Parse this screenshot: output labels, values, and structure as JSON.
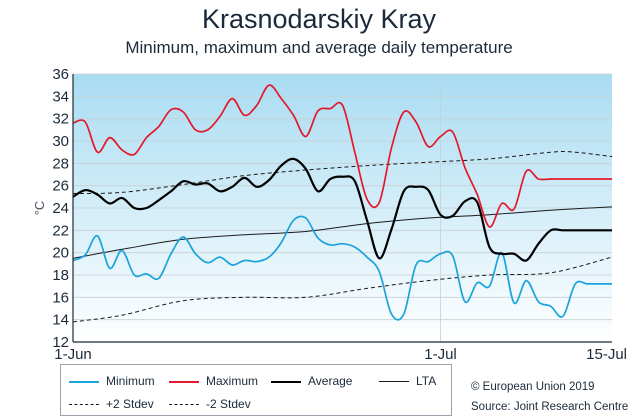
{
  "chart_data": {
    "type": "line",
    "title": "Krasnodarskiy Kray",
    "subtitle": "Minimum, maximum and average daily temperature",
    "xlabel": "",
    "ylabel": "°C",
    "ylim": [
      12,
      36
    ],
    "yticks": [
      12,
      14,
      16,
      18,
      20,
      22,
      24,
      26,
      28,
      30,
      32,
      34,
      36
    ],
    "xlim": [
      1,
      45
    ],
    "xticks": [
      {
        "day": 1,
        "label": "1-Jun"
      },
      {
        "day": 31,
        "label": "1-Jul"
      },
      {
        "day": 45,
        "label": "15-Jul"
      }
    ],
    "series": [
      {
        "name": "Minimum",
        "color": "#1aa3dc",
        "dash": "none",
        "x": [
          1,
          2,
          3,
          4,
          5,
          6,
          7,
          8,
          9,
          10,
          11,
          12,
          13,
          14,
          15,
          16,
          17,
          18,
          19,
          20,
          21,
          22,
          23,
          24,
          25,
          26,
          27,
          28,
          29,
          30,
          31,
          32,
          33,
          34,
          35,
          36,
          37,
          38,
          39,
          40,
          41,
          42,
          43,
          44,
          45
        ],
        "values": [
          19.3,
          19.8,
          21.5,
          18.6,
          20.2,
          18.0,
          18.1,
          17.7,
          19.9,
          21.4,
          19.9,
          19.1,
          19.6,
          18.9,
          19.3,
          19.2,
          19.6,
          20.9,
          22.9,
          23.1,
          21.3,
          20.7,
          20.8,
          20.5,
          19.6,
          18.3,
          14.5,
          14.5,
          18.9,
          19.2,
          19.9,
          19.7,
          15.6,
          17.3,
          17.0,
          20.0,
          15.5,
          17.5,
          15.6,
          15.2,
          14.3,
          17.2,
          17.2,
          17.2,
          17.2
        ]
      },
      {
        "name": "Maximum",
        "color": "#e3192b",
        "dash": "none",
        "x": [
          1,
          2,
          3,
          4,
          5,
          6,
          7,
          8,
          9,
          10,
          11,
          12,
          13,
          14,
          15,
          16,
          17,
          18,
          19,
          20,
          21,
          22,
          23,
          24,
          25,
          26,
          27,
          28,
          29,
          30,
          31,
          32,
          33,
          34,
          35,
          36,
          37,
          38,
          39,
          40,
          41,
          42,
          43,
          44,
          45
        ],
        "values": [
          31.6,
          31.7,
          29.0,
          30.3,
          29.2,
          28.8,
          30.3,
          31.3,
          32.8,
          32.6,
          31.0,
          31.0,
          32.2,
          33.8,
          32.3,
          33.2,
          35.0,
          33.8,
          32.3,
          30.4,
          32.7,
          32.9,
          33.2,
          29.0,
          24.8,
          24.5,
          29.4,
          32.6,
          31.7,
          29.5,
          30.4,
          30.8,
          27.6,
          25.2,
          22.3,
          24.4,
          23.9,
          27.3,
          26.6,
          26.6,
          26.6,
          26.6,
          26.6,
          26.6,
          26.6
        ]
      },
      {
        "name": "Average",
        "color": "#000000",
        "dash": "none",
        "x": [
          1,
          2,
          3,
          4,
          5,
          6,
          7,
          8,
          9,
          10,
          11,
          12,
          13,
          14,
          15,
          16,
          17,
          18,
          19,
          20,
          21,
          22,
          23,
          24,
          25,
          26,
          27,
          28,
          29,
          30,
          31,
          32,
          33,
          34,
          35,
          36,
          37,
          38,
          39,
          40,
          41,
          42,
          43,
          44,
          45
        ],
        "values": [
          25.0,
          25.6,
          25.2,
          24.4,
          24.9,
          24.0,
          24.0,
          24.7,
          25.5,
          26.4,
          26.1,
          26.2,
          25.5,
          25.9,
          26.7,
          25.9,
          26.5,
          27.8,
          28.4,
          27.5,
          25.5,
          26.6,
          26.8,
          26.4,
          22.9,
          19.5,
          22.1,
          25.5,
          25.9,
          25.6,
          23.4,
          23.3,
          24.6,
          24.5,
          20.5,
          19.9,
          19.9,
          19.3,
          20.8,
          22.0,
          22.0,
          22.0,
          22.0,
          22.0,
          22.0
        ]
      },
      {
        "name": "LTA",
        "color": "#1a1a1a",
        "dash": "none",
        "x": [
          1,
          5,
          10,
          15,
          20,
          25,
          30,
          35,
          40,
          45
        ],
        "values": [
          19.5,
          20.3,
          21.2,
          21.6,
          21.9,
          22.6,
          23.1,
          23.4,
          23.8,
          24.1
        ]
      },
      {
        "name": "+2 Stdev",
        "color": "#1a1a1a",
        "dash": "4,3",
        "x": [
          1,
          5,
          10,
          15,
          20,
          25,
          30,
          35,
          40,
          42,
          45
        ],
        "values": [
          25.3,
          25.4,
          26.1,
          26.9,
          27.4,
          27.8,
          28.1,
          28.4,
          29.0,
          29.0,
          28.6
        ]
      },
      {
        "name": "-2 Stdev",
        "color": "#1a1a1a",
        "dash": "4,3",
        "x": [
          1,
          5,
          10,
          15,
          20,
          25,
          30,
          35,
          40,
          45
        ],
        "values": [
          13.8,
          14.4,
          15.7,
          16.0,
          16.0,
          16.8,
          17.5,
          18.0,
          18.2,
          19.6
        ]
      }
    ]
  },
  "legend": {
    "minimum": "Minimum",
    "maximum": "Maximum",
    "average": "Average",
    "lta": "LTA",
    "plus2": "+2 Stdev",
    "minus2": "-2 Stdev"
  },
  "credits": {
    "copyright": "© European Union 2019",
    "source": "Source: Joint Research Centre"
  }
}
